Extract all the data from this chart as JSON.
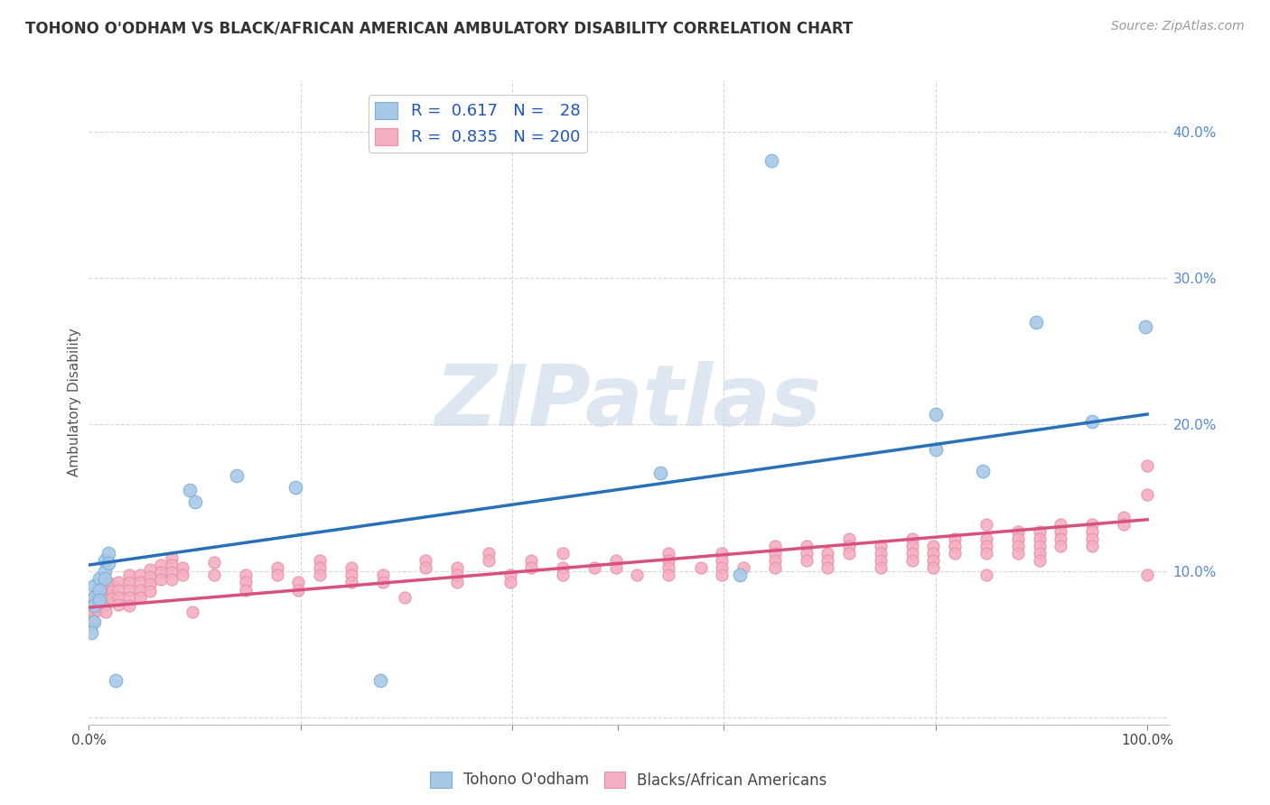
{
  "title": "TOHONO O'ODHAM VS BLACK/AFRICAN AMERICAN AMBULATORY DISABILITY CORRELATION CHART",
  "source": "Source: ZipAtlas.com",
  "ylabel": "Ambulatory Disability",
  "xlim": [
    0.0,
    1.02
  ],
  "ylim": [
    -0.005,
    0.435
  ],
  "ytick_positions": [
    0.0,
    0.1,
    0.2,
    0.3,
    0.4
  ],
  "ytick_labels": [
    "",
    "10.0%",
    "20.0%",
    "30.0%",
    "40.0%"
  ],
  "legend1_R": "0.617",
  "legend1_N": "28",
  "legend2_R": "0.835",
  "legend2_N": "200",
  "blue_color": "#a8c8e8",
  "blue_edge_color": "#7bafd4",
  "pink_color": "#f4afc0",
  "pink_edge_color": "#e88fa8",
  "blue_line_color": "#2870b8",
  "pink_line_color": "#d85080",
  "watermark": "ZIPatlas",
  "watermark_color": "#c8d8e8",
  "tohono_points": [
    [
      0.005,
      0.09
    ],
    [
      0.005,
      0.082
    ],
    [
      0.005,
      0.076
    ],
    [
      0.005,
      0.065
    ],
    [
      0.01,
      0.095
    ],
    [
      0.01,
      0.087
    ],
    [
      0.01,
      0.08
    ],
    [
      0.015,
      0.107
    ],
    [
      0.015,
      0.1
    ],
    [
      0.015,
      0.095
    ],
    [
      0.018,
      0.112
    ],
    [
      0.018,
      0.105
    ],
    [
      0.025,
      0.025
    ],
    [
      0.095,
      0.155
    ],
    [
      0.1,
      0.147
    ],
    [
      0.14,
      0.165
    ],
    [
      0.195,
      0.157
    ],
    [
      0.275,
      0.025
    ],
    [
      0.54,
      0.167
    ],
    [
      0.615,
      0.097
    ],
    [
      0.645,
      0.38
    ],
    [
      0.8,
      0.207
    ],
    [
      0.8,
      0.183
    ],
    [
      0.845,
      0.168
    ],
    [
      0.895,
      0.27
    ],
    [
      0.948,
      0.202
    ],
    [
      0.998,
      0.267
    ],
    [
      0.002,
      0.058
    ]
  ],
  "black_points": [
    [
      0.001,
      0.078
    ],
    [
      0.001,
      0.072
    ],
    [
      0.001,
      0.067
    ],
    [
      0.001,
      0.062
    ],
    [
      0.004,
      0.082
    ],
    [
      0.004,
      0.077
    ],
    [
      0.004,
      0.071
    ],
    [
      0.004,
      0.066
    ],
    [
      0.008,
      0.088
    ],
    [
      0.008,
      0.083
    ],
    [
      0.008,
      0.079
    ],
    [
      0.008,
      0.073
    ],
    [
      0.012,
      0.086
    ],
    [
      0.012,
      0.081
    ],
    [
      0.012,
      0.076
    ],
    [
      0.016,
      0.092
    ],
    [
      0.016,
      0.087
    ],
    [
      0.016,
      0.082
    ],
    [
      0.016,
      0.077
    ],
    [
      0.016,
      0.072
    ],
    [
      0.022,
      0.091
    ],
    [
      0.022,
      0.086
    ],
    [
      0.022,
      0.081
    ],
    [
      0.028,
      0.092
    ],
    [
      0.028,
      0.087
    ],
    [
      0.028,
      0.082
    ],
    [
      0.028,
      0.077
    ],
    [
      0.038,
      0.097
    ],
    [
      0.038,
      0.092
    ],
    [
      0.038,
      0.087
    ],
    [
      0.038,
      0.082
    ],
    [
      0.038,
      0.076
    ],
    [
      0.048,
      0.097
    ],
    [
      0.048,
      0.092
    ],
    [
      0.048,
      0.087
    ],
    [
      0.048,
      0.082
    ],
    [
      0.058,
      0.101
    ],
    [
      0.058,
      0.096
    ],
    [
      0.058,
      0.091
    ],
    [
      0.058,
      0.086
    ],
    [
      0.068,
      0.104
    ],
    [
      0.068,
      0.099
    ],
    [
      0.068,
      0.094
    ],
    [
      0.078,
      0.109
    ],
    [
      0.078,
      0.104
    ],
    [
      0.078,
      0.099
    ],
    [
      0.078,
      0.094
    ],
    [
      0.088,
      0.102
    ],
    [
      0.088,
      0.097
    ],
    [
      0.098,
      0.072
    ],
    [
      0.118,
      0.106
    ],
    [
      0.118,
      0.097
    ],
    [
      0.148,
      0.097
    ],
    [
      0.148,
      0.092
    ],
    [
      0.148,
      0.087
    ],
    [
      0.178,
      0.102
    ],
    [
      0.178,
      0.097
    ],
    [
      0.198,
      0.092
    ],
    [
      0.198,
      0.087
    ],
    [
      0.218,
      0.107
    ],
    [
      0.218,
      0.102
    ],
    [
      0.218,
      0.097
    ],
    [
      0.248,
      0.102
    ],
    [
      0.248,
      0.097
    ],
    [
      0.248,
      0.092
    ],
    [
      0.278,
      0.097
    ],
    [
      0.278,
      0.092
    ],
    [
      0.298,
      0.082
    ],
    [
      0.318,
      0.107
    ],
    [
      0.318,
      0.102
    ],
    [
      0.348,
      0.102
    ],
    [
      0.348,
      0.097
    ],
    [
      0.348,
      0.092
    ],
    [
      0.378,
      0.112
    ],
    [
      0.378,
      0.107
    ],
    [
      0.398,
      0.097
    ],
    [
      0.398,
      0.092
    ],
    [
      0.418,
      0.107
    ],
    [
      0.418,
      0.102
    ],
    [
      0.448,
      0.112
    ],
    [
      0.448,
      0.102
    ],
    [
      0.448,
      0.097
    ],
    [
      0.478,
      0.102
    ],
    [
      0.498,
      0.107
    ],
    [
      0.498,
      0.102
    ],
    [
      0.518,
      0.097
    ],
    [
      0.548,
      0.112
    ],
    [
      0.548,
      0.107
    ],
    [
      0.548,
      0.102
    ],
    [
      0.548,
      0.097
    ],
    [
      0.578,
      0.102
    ],
    [
      0.598,
      0.112
    ],
    [
      0.598,
      0.107
    ],
    [
      0.598,
      0.102
    ],
    [
      0.598,
      0.097
    ],
    [
      0.618,
      0.102
    ],
    [
      0.648,
      0.117
    ],
    [
      0.648,
      0.112
    ],
    [
      0.648,
      0.107
    ],
    [
      0.648,
      0.102
    ],
    [
      0.678,
      0.117
    ],
    [
      0.678,
      0.112
    ],
    [
      0.678,
      0.107
    ],
    [
      0.698,
      0.112
    ],
    [
      0.698,
      0.107
    ],
    [
      0.698,
      0.102
    ],
    [
      0.718,
      0.122
    ],
    [
      0.718,
      0.117
    ],
    [
      0.718,
      0.112
    ],
    [
      0.748,
      0.117
    ],
    [
      0.748,
      0.112
    ],
    [
      0.748,
      0.107
    ],
    [
      0.748,
      0.102
    ],
    [
      0.778,
      0.122
    ],
    [
      0.778,
      0.117
    ],
    [
      0.778,
      0.112
    ],
    [
      0.778,
      0.107
    ],
    [
      0.798,
      0.117
    ],
    [
      0.798,
      0.112
    ],
    [
      0.798,
      0.107
    ],
    [
      0.798,
      0.102
    ],
    [
      0.818,
      0.122
    ],
    [
      0.818,
      0.117
    ],
    [
      0.818,
      0.112
    ],
    [
      0.848,
      0.132
    ],
    [
      0.848,
      0.122
    ],
    [
      0.848,
      0.117
    ],
    [
      0.848,
      0.112
    ],
    [
      0.848,
      0.097
    ],
    [
      0.878,
      0.127
    ],
    [
      0.878,
      0.122
    ],
    [
      0.878,
      0.117
    ],
    [
      0.878,
      0.112
    ],
    [
      0.898,
      0.127
    ],
    [
      0.898,
      0.122
    ],
    [
      0.898,
      0.117
    ],
    [
      0.898,
      0.112
    ],
    [
      0.898,
      0.107
    ],
    [
      0.918,
      0.132
    ],
    [
      0.918,
      0.127
    ],
    [
      0.918,
      0.122
    ],
    [
      0.918,
      0.117
    ],
    [
      0.948,
      0.132
    ],
    [
      0.948,
      0.127
    ],
    [
      0.948,
      0.122
    ],
    [
      0.948,
      0.117
    ],
    [
      0.978,
      0.137
    ],
    [
      0.978,
      0.132
    ],
    [
      1.0,
      0.172
    ],
    [
      1.0,
      0.152
    ],
    [
      1.0,
      0.097
    ]
  ],
  "tohono_line_x": [
    0.0,
    1.0
  ],
  "tohono_line_y": [
    0.104,
    0.207
  ],
  "black_line_x": [
    0.0,
    1.0
  ],
  "black_line_y": [
    0.075,
    0.135
  ],
  "background_color": "#ffffff",
  "grid_color": "#cccccc"
}
